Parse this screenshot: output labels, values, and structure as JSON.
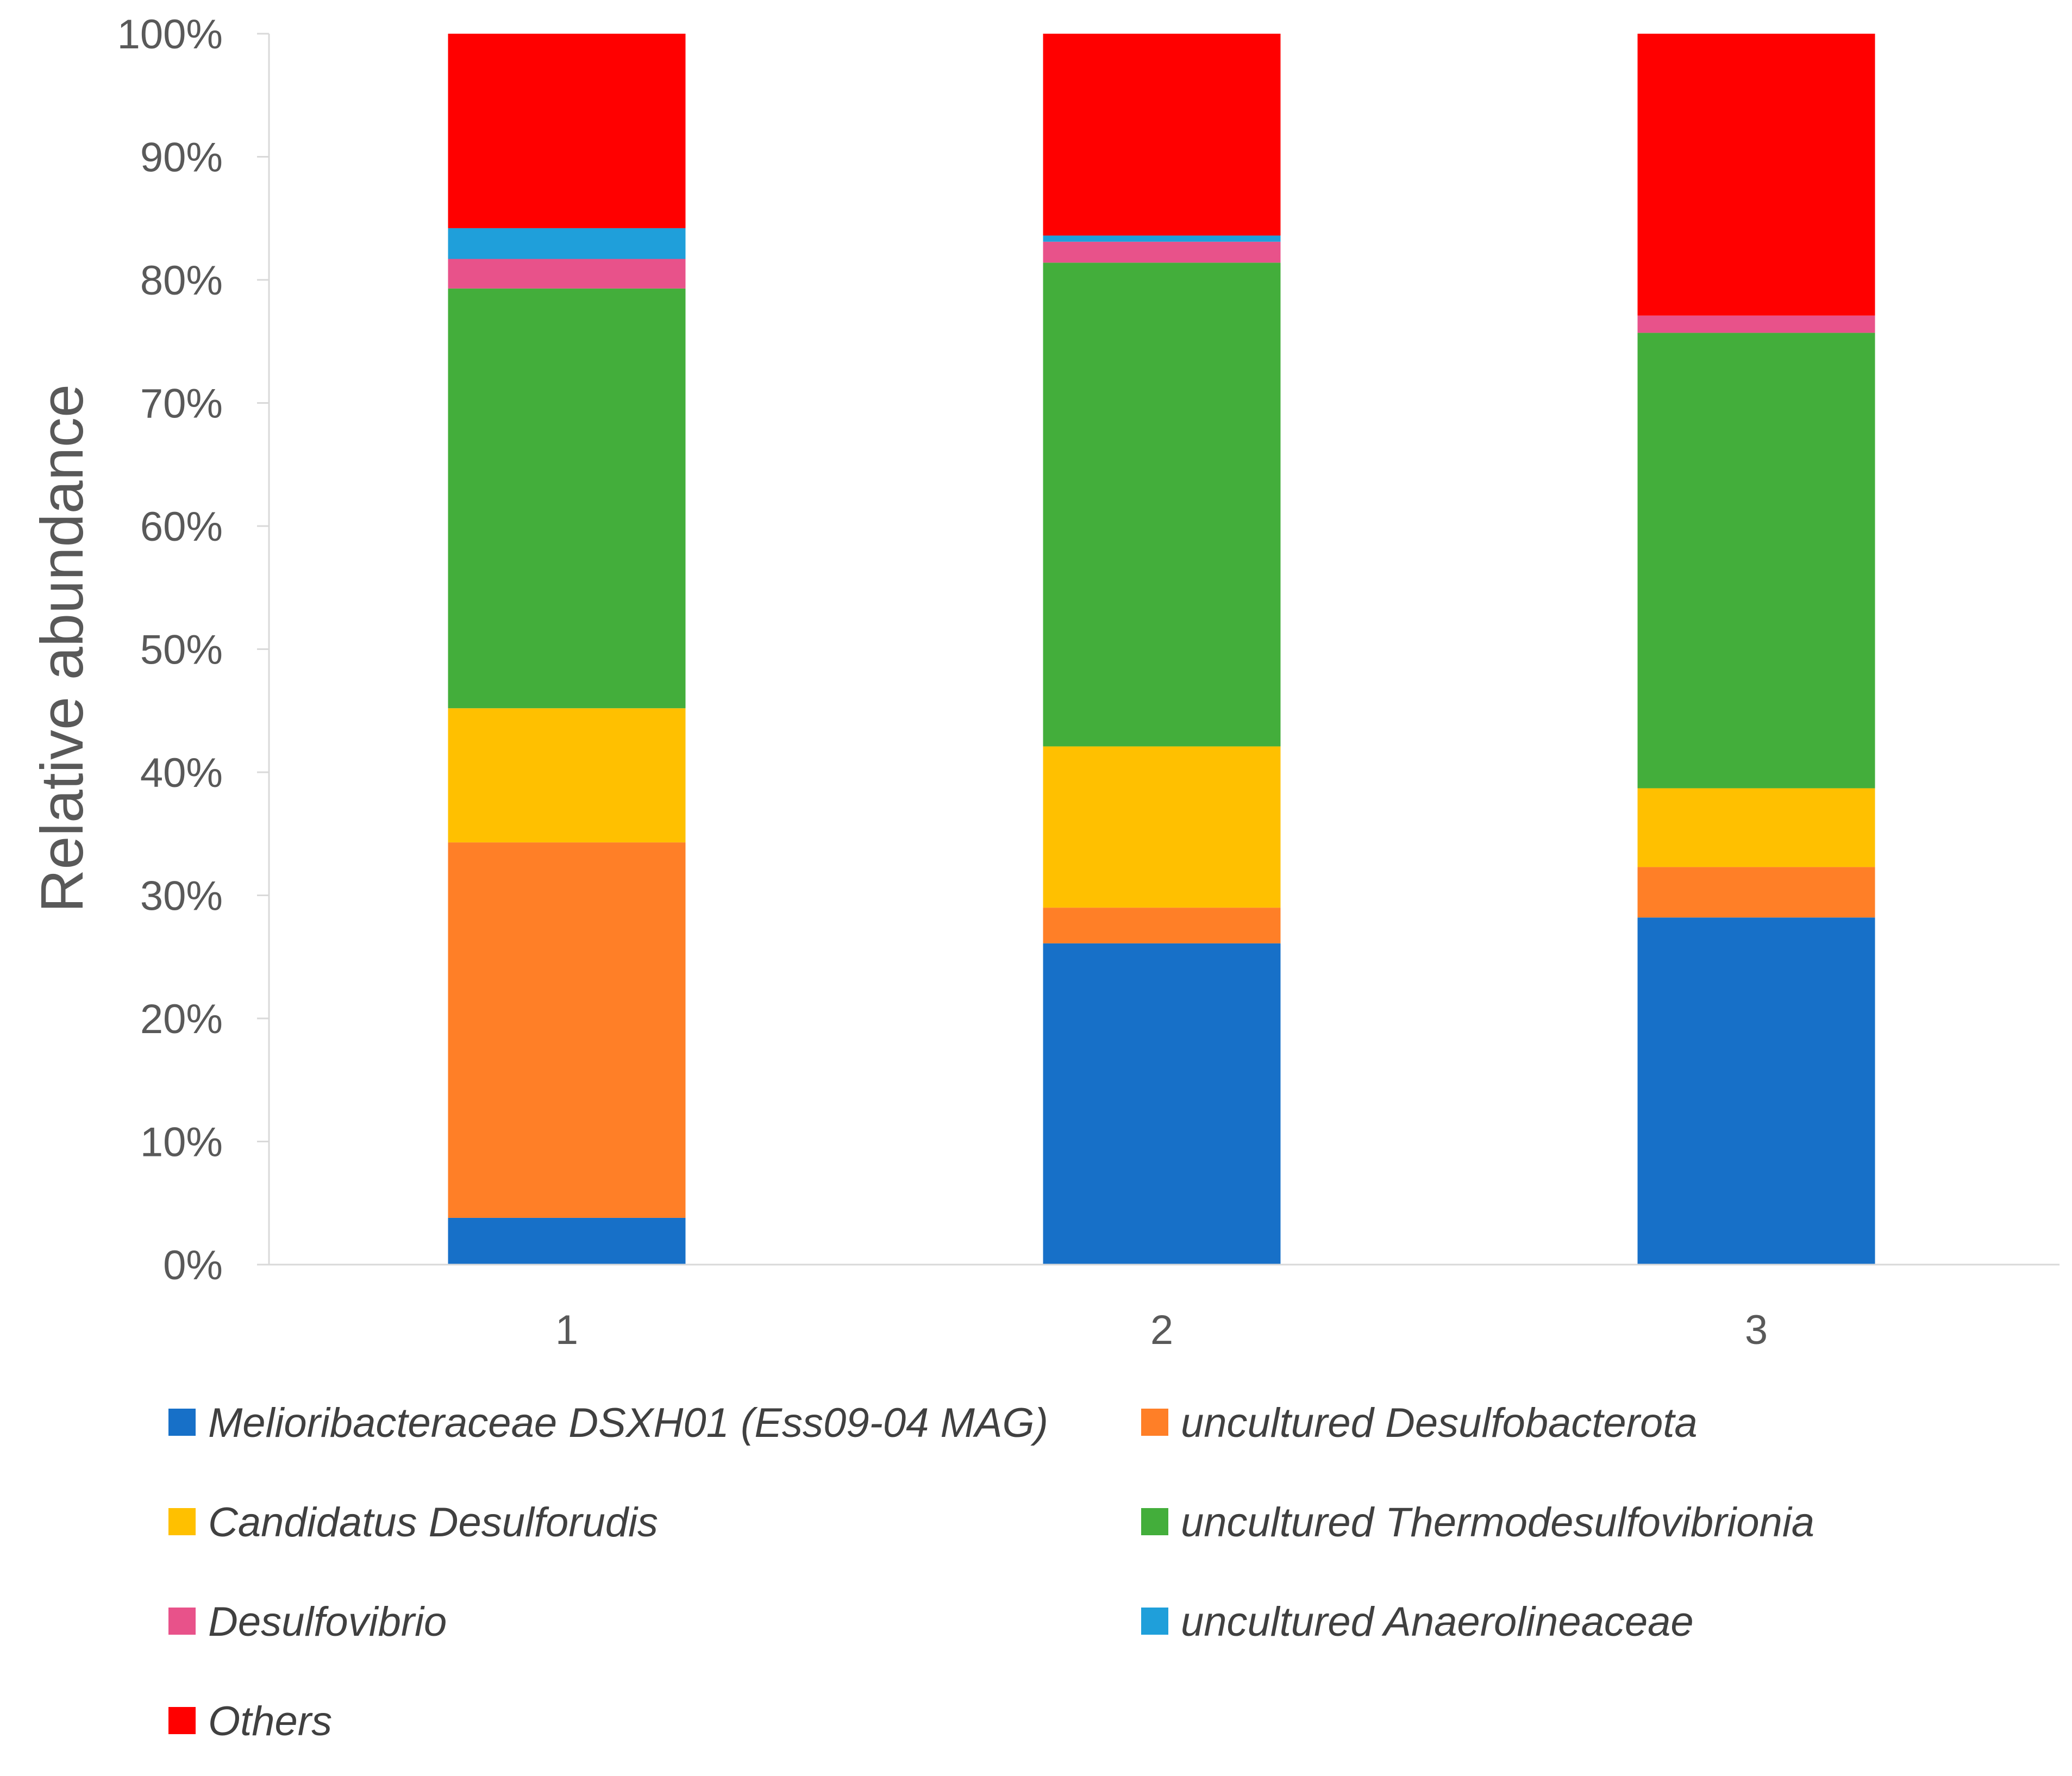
{
  "chart_data": {
    "type": "bar",
    "stacked": true,
    "percent": true,
    "title": "",
    "xlabel": "",
    "ylabel": "Relative abundance",
    "ylim": [
      0,
      100
    ],
    "yticks": [
      "0%",
      "10%",
      "20%",
      "30%",
      "40%",
      "50%",
      "60%",
      "70%",
      "80%",
      "90%",
      "100%"
    ],
    "categories": [
      "1",
      "2",
      "3"
    ],
    "grid": false,
    "legend_position": "bottom",
    "series": [
      {
        "name": "Melioribacteraceae DSXH01 (Ess09-04 MAG)",
        "color": "#1770C8",
        "values": [
          3.8,
          26.1,
          28.2
        ]
      },
      {
        "name": "uncultured Desulfobacterota",
        "color": "#FF7F27",
        "values": [
          30.5,
          2.9,
          4.1
        ]
      },
      {
        "name": "Candidatus Desulforudis",
        "color": "#FFC000",
        "values": [
          10.9,
          13.1,
          6.4
        ]
      },
      {
        "name": "uncultured Thermodesulfovibrionia",
        "color": "#43AE3B",
        "values": [
          34.1,
          39.3,
          37.0
        ]
      },
      {
        "name": "Desulfovibrio",
        "color": "#E8528A",
        "values": [
          2.4,
          1.7,
          1.4
        ]
      },
      {
        "name": "uncultured Anaerolineaceae",
        "color": "#1F9FDA",
        "values": [
          2.5,
          0.5,
          0.0
        ]
      },
      {
        "name": "Others",
        "color": "#FF0000",
        "values": [
          15.8,
          16.4,
          22.9
        ]
      }
    ]
  }
}
